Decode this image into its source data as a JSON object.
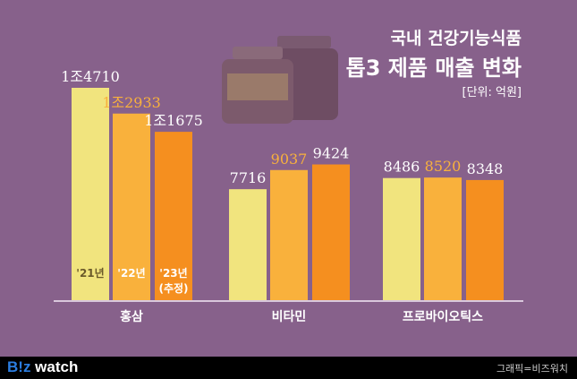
{
  "title_line1": "국내 건강기능식품",
  "title_line2": "톱3 제품 매출 변화",
  "unit": "[단위: 억원]",
  "footer": {
    "logo_prefix": "B!z",
    "logo_suffix": " watch",
    "credit": "그래픽=비즈워치"
  },
  "colors": {
    "background": "#87618b",
    "y2021": "#f1e47e",
    "y2022": "#f9b13c",
    "y2023": "#f58f1f",
    "label2022": "#f9b13c"
  },
  "chart_data": {
    "type": "bar",
    "categories": [
      "홍삼",
      "비타민",
      "프로바이오틱스"
    ],
    "series_labels": [
      "'21년",
      "'22년",
      "'23년",
      "(추정)"
    ],
    "series": [
      {
        "name": "'21년",
        "values": [
          14710,
          7716,
          8486
        ],
        "labels": [
          "1조4710",
          "7716",
          "8486"
        ]
      },
      {
        "name": "'22년",
        "values": [
          12933,
          9037,
          8520
        ],
        "labels": [
          "1조2933",
          "9037",
          "8520"
        ]
      },
      {
        "name": "'23년(추정)",
        "values": [
          11675,
          9424,
          8348
        ],
        "labels": [
          "1조1675",
          "9424",
          "8348"
        ]
      }
    ],
    "ylim": [
      0,
      15000
    ],
    "grid": false
  }
}
